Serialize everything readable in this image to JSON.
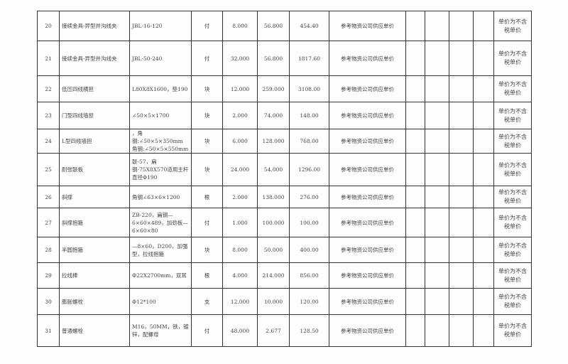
{
  "rows": [
    {
      "no": "20",
      "name": "接续金具-异型并沟线夹",
      "spec": "JBL-16-120",
      "unit": "付",
      "qty": "8.000",
      "price": "56.800",
      "amount": "454.40",
      "source": "参考物资公司供应单价",
      "note": "单价为不含税单价"
    },
    {
      "no": "21",
      "name": "接续金具-异型并沟线夹",
      "spec": "JBL-50-240",
      "unit": "付",
      "qty": "32.000",
      "price": "56.800",
      "amount": "1817.60",
      "source": "参考物资公司供应单价",
      "note": "单价为不含税单价"
    },
    {
      "no": "22",
      "name": "低压四线横担",
      "spec": "L80X8X1600，垫190",
      "unit": "块",
      "qty": "12.000",
      "price": "259.000",
      "amount": "3108.00",
      "source": "参考物资公司供应单价",
      "note": "单价为不含税单价"
    },
    {
      "no": "23",
      "name": "门型四线墙担",
      "spec": "∠50×5×1700",
      "unit": "块",
      "qty": "2.000",
      "price": "74.000",
      "amount": "148.00",
      "source": "参考物资公司供应单价",
      "note": "单价为不含税单价"
    },
    {
      "no": "24",
      "name": "L型四线墙担",
      "spec": "，角钢:∠50×5×350mm 角钢:∠50×5×550mm",
      "unit": "块",
      "qty": "6.000",
      "price": "128.000",
      "amount": "768.00",
      "source": "参考物资公司供应单价",
      "note": "单价为不含税单价"
    },
    {
      "no": "25",
      "name": "耐张联板",
      "spec": "联-57，扁钢-75X8X570适用主杆直径Φ190",
      "unit": "块",
      "qty": "24.000",
      "price": "54.000",
      "amount": "1296.00",
      "source": "参考物资公司供应单价",
      "note": "单价为不含税单价"
    },
    {
      "no": "26",
      "name": "斜撑",
      "spec": "角钢∠63×6×1200",
      "unit": "根",
      "qty": "2.000",
      "price": "138.000",
      "amount": "276.00",
      "source": "参考物资公司供应单价",
      "note": "单价为不含税单价"
    },
    {
      "no": "27",
      "name": "斜撑抱箍",
      "spec": "ZB-220，扁钢—6×60×489，加劲板—6×60×80",
      "unit": "付",
      "qty": "1.000",
      "price": "100.000",
      "amount": "100.00",
      "source": "参考物资公司供应单价",
      "note": "单价为不含税单价"
    },
    {
      "no": "28",
      "name": "半圆抱箍",
      "spec": "—8×60，D200，加强型，拉线抱箍",
      "unit": "块",
      "qty": "8.000",
      "price": "50.000",
      "amount": "400.00",
      "source": "参考物资公司供应单价",
      "note": "单价为不含税单价"
    },
    {
      "no": "29",
      "name": "拉线棒",
      "spec": "Φ22X2700mm，双耳",
      "unit": "根",
      "qty": "4.000",
      "price": "214.000",
      "amount": "856.00",
      "source": "参考物资公司供应单价",
      "note": "单价为不含税单价"
    },
    {
      "no": "30",
      "name": "膨胀螺栓",
      "spec": "Φ12*100",
      "unit": "支",
      "qty": "12.000",
      "price": "10.000",
      "amount": "120.00",
      "source": "参考物资公司供应单价",
      "note": "单价为不含税单价"
    },
    {
      "no": "31",
      "name": "普通螺栓",
      "spec": "M16，50MM，铁，镀锌，配螺母",
      "unit": "付",
      "qty": "48.000",
      "price": "2.677",
      "amount": "128.50",
      "source": "参考物资公司供应单价",
      "note": "单价为不含税单价"
    }
  ]
}
